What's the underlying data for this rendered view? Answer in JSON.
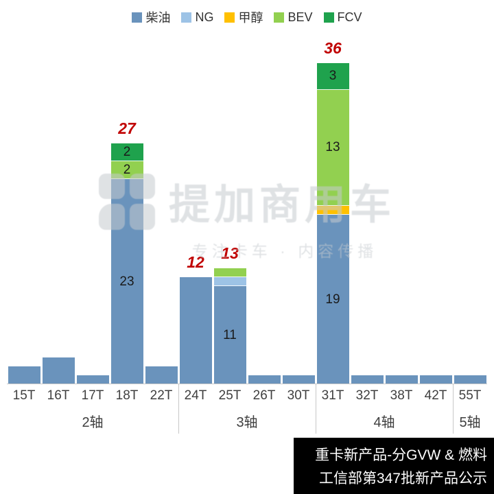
{
  "chart_data": {
    "type": "bar",
    "stacked": true,
    "title": "重卡新产品-分GVW & 燃料",
    "subtitle": "工信部第347批新产品公示",
    "legend_position": "top",
    "y_axis_visible": false,
    "ylim": [
      0,
      38
    ],
    "series": [
      "柴油",
      "NG",
      "甲醇",
      "BEV",
      "FCV"
    ],
    "series_colors": {
      "柴油": "#6a93bc",
      "NG": "#9dc3e6",
      "甲醇": "#ffc000",
      "BEV": "#92d050",
      "FCV": "#1fa24d"
    },
    "total_label_color": "#c00000",
    "axis_groups": [
      {
        "label": "2轴",
        "span": 5
      },
      {
        "label": "3轴",
        "span": 4
      },
      {
        "label": "4轴",
        "span": 4
      },
      {
        "label": "5轴",
        "span": 1
      }
    ],
    "categories": [
      {
        "name": "15T",
        "group": "2轴",
        "segments": [
          {
            "series": "柴油",
            "value": 2
          }
        ]
      },
      {
        "name": "16T",
        "group": "2轴",
        "segments": [
          {
            "series": "柴油",
            "value": 3
          }
        ]
      },
      {
        "name": "17T",
        "group": "2轴",
        "segments": [
          {
            "series": "柴油",
            "value": 1
          }
        ]
      },
      {
        "name": "18T",
        "group": "2轴",
        "total_label": "27",
        "segments": [
          {
            "series": "柴油",
            "value": 23,
            "label": "23"
          },
          {
            "series": "BEV",
            "value": 2,
            "label": "2"
          },
          {
            "series": "FCV",
            "value": 2,
            "label": "2"
          }
        ]
      },
      {
        "name": "22T",
        "group": "2轴",
        "segments": [
          {
            "series": "柴油",
            "value": 2
          }
        ]
      },
      {
        "name": "24T",
        "group": "3轴",
        "total_label": "12",
        "segments": [
          {
            "series": "柴油",
            "value": 12
          }
        ]
      },
      {
        "name": "25T",
        "group": "3轴",
        "total_label": "13",
        "segments": [
          {
            "series": "柴油",
            "value": 11,
            "label": "11"
          },
          {
            "series": "NG",
            "value": 1
          },
          {
            "series": "BEV",
            "value": 1
          }
        ]
      },
      {
        "name": "26T",
        "group": "3轴",
        "segments": [
          {
            "series": "柴油",
            "value": 1
          }
        ]
      },
      {
        "name": "30T",
        "group": "3轴",
        "segments": [
          {
            "series": "柴油",
            "value": 1
          }
        ]
      },
      {
        "name": "31T",
        "group": "4轴",
        "total_label": "36",
        "segments": [
          {
            "series": "柴油",
            "value": 19,
            "label": "19"
          },
          {
            "series": "甲醇",
            "value": 1
          },
          {
            "series": "BEV",
            "value": 13,
            "label": "13"
          },
          {
            "series": "FCV",
            "value": 3,
            "label": "3"
          }
        ]
      },
      {
        "name": "32T",
        "group": "4轴",
        "segments": [
          {
            "series": "柴油",
            "value": 1
          }
        ]
      },
      {
        "name": "38T",
        "group": "4轴",
        "segments": [
          {
            "series": "柴油",
            "value": 1
          }
        ]
      },
      {
        "name": "42T",
        "group": "4轴",
        "segments": [
          {
            "series": "柴油",
            "value": 1
          }
        ]
      },
      {
        "name": "55T",
        "group": "5轴",
        "segments": [
          {
            "series": "柴油",
            "value": 1
          }
        ]
      }
    ]
  },
  "watermark": {
    "text": "提加商用车",
    "tagline": "专注卡车 · 内容传播"
  }
}
